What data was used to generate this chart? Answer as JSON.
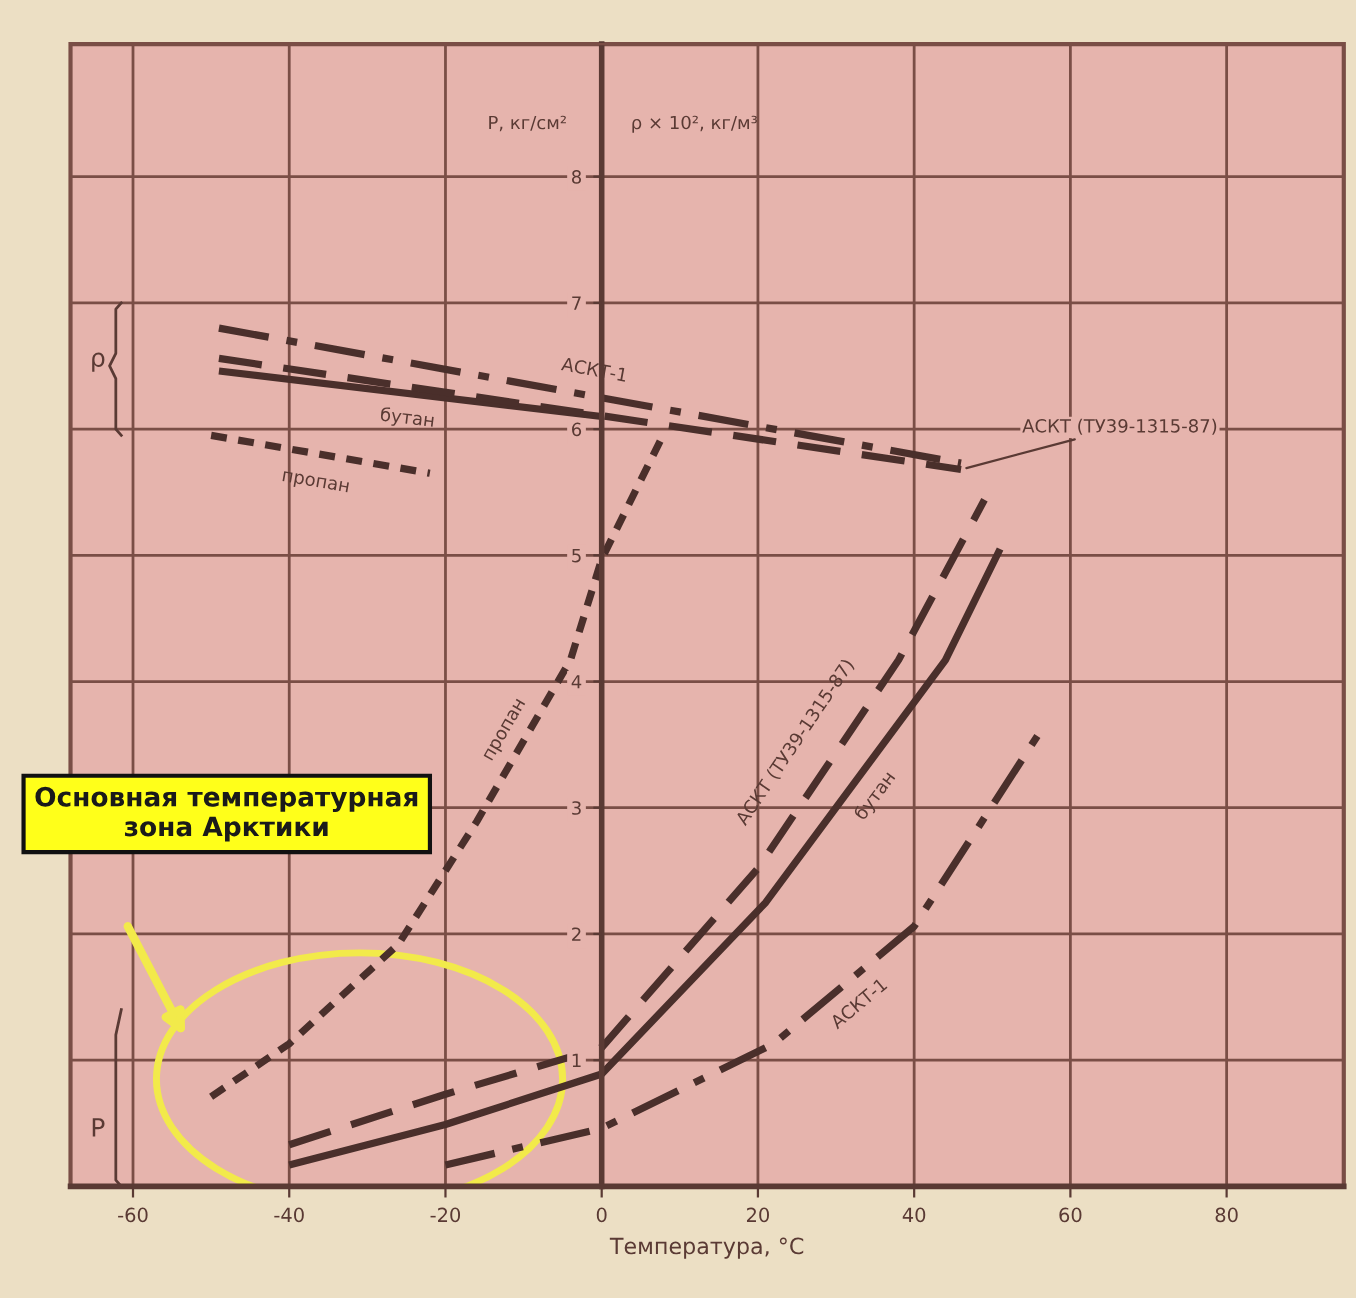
{
  "chart_data": {
    "type": "line",
    "xlabel": "Температура, °С",
    "annotations": [
      "P, кг/см²",
      "ρ × 10², кг/м³",
      "ρ",
      "P",
      "Основная температурная зона Арктики"
    ],
    "xlim": [
      -68,
      95
    ],
    "ylim": [
      0,
      9.05
    ],
    "xticks": [
      -60,
      -40,
      -20,
      0,
      20,
      40,
      60,
      80
    ],
    "yticks": [
      1,
      2,
      3,
      4,
      5,
      6,
      7,
      8
    ],
    "grid": true,
    "legend": false,
    "marker": "none",
    "series": [
      {
        "name": "АСКТ-1",
        "color": "#4a2f2b",
        "line_style": "dashdot",
        "x": [
          -49,
          46
        ],
        "values": [
          6.8,
          5.73
        ]
      },
      {
        "name": "бутан",
        "color": "#4a2f2b",
        "line_style": "solid",
        "x": [
          -49,
          0
        ],
        "values": [
          6.46,
          6.1
        ]
      },
      {
        "name": "пропан",
        "color": "#4a2f2b",
        "line_style": "dotted",
        "x": [
          -50,
          -22
        ],
        "values": [
          5.95,
          5.65
        ]
      },
      {
        "name": "АСКТ (ТУ39-1315-87)",
        "color": "#4a2f2b",
        "line_style": "dashed",
        "x": [
          -49,
          46
        ],
        "values": [
          6.56,
          5.68
        ]
      },
      {
        "name": "пропан",
        "color": "#4a2f2b",
        "line_style": "dotted",
        "x": [
          -50,
          -40,
          -26,
          -16,
          -4,
          0,
          8
        ],
        "values": [
          0.71,
          1.13,
          1.92,
          2.89,
          4.17,
          4.97,
          5.97
        ]
      },
      {
        "name": "АСКТ (ТУ39-1315-87)",
        "color": "#4a2f2b",
        "line_style": "dashed",
        "x": [
          -40,
          -20,
          0,
          20,
          38,
          49
        ],
        "values": [
          0.33,
          0.73,
          1.1,
          2.52,
          4.17,
          5.44
        ]
      },
      {
        "name": "бутан",
        "color": "#4a2f2b",
        "line_style": "solid",
        "x": [
          -40,
          -20,
          0,
          21,
          44,
          51
        ],
        "values": [
          0.17,
          0.49,
          0.89,
          2.25,
          4.17,
          5.05
        ]
      },
      {
        "name": "АСКТ-1",
        "color": "#4a2f2b",
        "line_style": "dashdot",
        "x": [
          -20,
          0,
          22,
          40,
          56
        ],
        "values": [
          0.17,
          0.46,
          1.13,
          2.06,
          3.59
        ]
      }
    ]
  }
}
